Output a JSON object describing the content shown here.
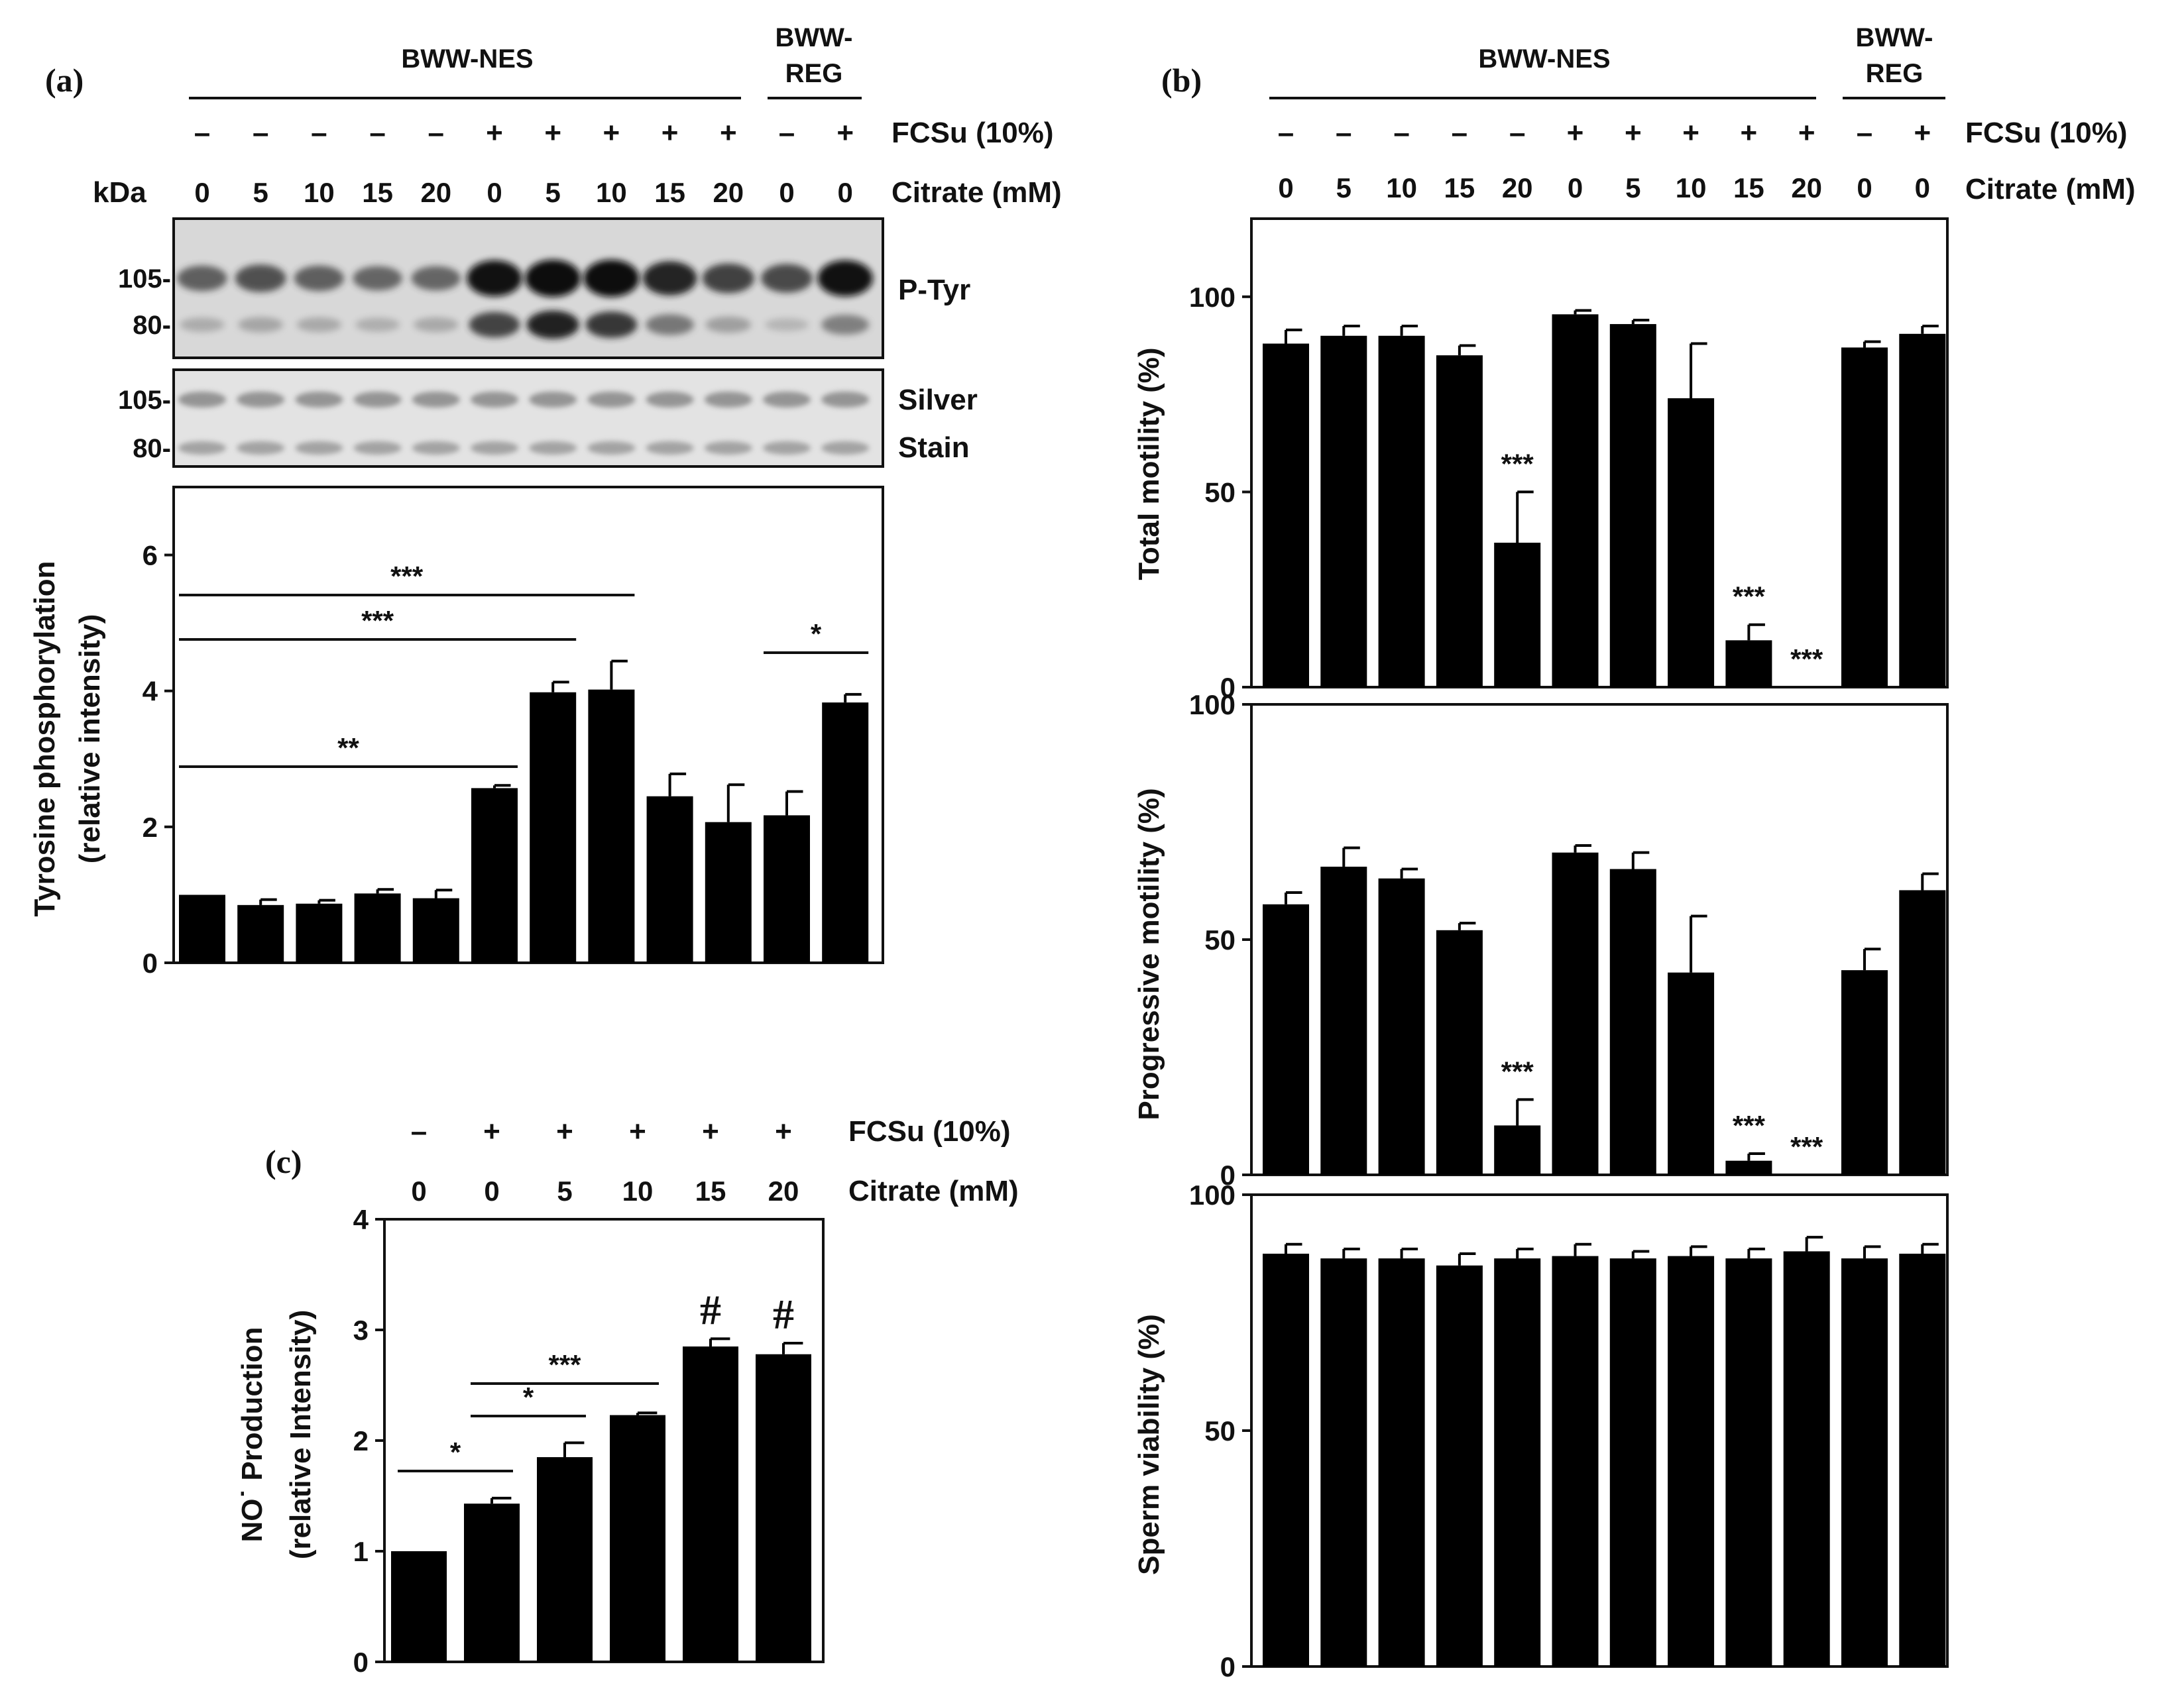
{
  "panel_labels": {
    "a": "(a)",
    "b": "(b)",
    "c": "(c)"
  },
  "header": {
    "group_nes": "BWW-NES",
    "group_reg_line1": "BWW-",
    "group_reg_line2": "REG",
    "fcsu_label": "FCSu (10%)",
    "citrate_label": "Citrate (mM)",
    "kda_label": "kDa",
    "fcsu_signs": [
      "–",
      "–",
      "–",
      "–",
      "–",
      "+",
      "+",
      "+",
      "+",
      "+",
      "–",
      "+"
    ],
    "citrate_values": [
      "0",
      "5",
      "10",
      "15",
      "20",
      "0",
      "5",
      "10",
      "15",
      "20",
      "0",
      "0"
    ]
  },
  "blot": {
    "ptyr_label": "P-Tyr",
    "silver_label_1": "Silver",
    "silver_label_2": "Stain",
    "marker_105": "105-",
    "marker_80": "80-",
    "band105_intensity": [
      0.45,
      0.55,
      0.45,
      0.4,
      0.4,
      0.95,
      1.0,
      1.0,
      0.85,
      0.65,
      0.6,
      0.95
    ],
    "band80_intensity": [
      0.2,
      0.25,
      0.22,
      0.18,
      0.22,
      0.8,
      0.95,
      0.85,
      0.55,
      0.3,
      0.12,
      0.5
    ]
  },
  "header_c": {
    "fcsu_signs": [
      "–",
      "+",
      "+",
      "+",
      "+",
      "+"
    ],
    "citrate_values": [
      "0",
      "0",
      "5",
      "10",
      "15",
      "20"
    ]
  },
  "chart_data": [
    {
      "id": "a",
      "type": "bar",
      "ylabel_line1": "Tyrosine phosphorylation",
      "ylabel_line2": "(relative intensity)",
      "ylim": [
        0,
        7
      ],
      "yticks": [
        "0",
        "2",
        "4",
        "6"
      ],
      "categories": [
        "0",
        "5",
        "10",
        "15",
        "20",
        "0",
        "5",
        "10",
        "15",
        "20",
        "0",
        "0"
      ],
      "values": [
        1.0,
        0.85,
        0.87,
        1.02,
        0.95,
        2.57,
        3.98,
        4.02,
        2.45,
        2.07,
        2.17,
        3.83
      ],
      "errors": [
        0.0,
        0.08,
        0.05,
        0.06,
        0.12,
        0.04,
        0.15,
        0.42,
        0.33,
        0.55,
        0.35,
        0.12
      ],
      "significance": [
        {
          "from": 0,
          "to": 7,
          "label": "***"
        },
        {
          "from": 0,
          "to": 6,
          "label": "***"
        },
        {
          "from": 0,
          "to": 5,
          "label": "**"
        },
        {
          "from": 10,
          "to": 11,
          "label": "*"
        }
      ]
    },
    {
      "id": "b1",
      "type": "bar",
      "ylabel": "Total motility (%)",
      "ylim": [
        0,
        120
      ],
      "yticks": [
        "0",
        "50",
        "100"
      ],
      "categories": [
        "0",
        "5",
        "10",
        "15",
        "20",
        "0",
        "5",
        "10",
        "15",
        "20",
        "0",
        "0"
      ],
      "values": [
        88,
        90,
        90,
        85,
        37,
        95.5,
        93,
        74,
        12,
        0,
        87,
        90.5
      ],
      "errors": [
        3.5,
        2.5,
        2.5,
        2.5,
        13,
        1,
        1,
        14,
        4,
        0,
        1.5,
        2
      ],
      "annotations": [
        {
          "index": 4,
          "label": "***"
        },
        {
          "index": 8,
          "label": "***"
        },
        {
          "index": 9,
          "label": "***"
        }
      ]
    },
    {
      "id": "b2",
      "type": "bar",
      "ylabel": "Progressive motility (%)",
      "ylim": [
        0,
        100
      ],
      "yticks": [
        "0",
        "50",
        "100"
      ],
      "categories": [
        "0",
        "5",
        "10",
        "15",
        "20",
        "0",
        "5",
        "10",
        "15",
        "20",
        "0",
        "0"
      ],
      "values": [
        57.5,
        65.5,
        63,
        52,
        10.5,
        68.5,
        65,
        43,
        3,
        0,
        43.5,
        60.5
      ],
      "errors": [
        2.5,
        4,
        2,
        1.5,
        5.5,
        1.5,
        3.5,
        12,
        1.5,
        0,
        4.5,
        3.5
      ],
      "annotations": [
        {
          "index": 4,
          "label": "***"
        },
        {
          "index": 8,
          "label": "***"
        },
        {
          "index": 9,
          "label": "***"
        }
      ]
    },
    {
      "id": "b3",
      "type": "bar",
      "ylabel": "Sperm viability (%)",
      "ylim": [
        0,
        100
      ],
      "yticks": [
        "0",
        "50",
        "100"
      ],
      "categories": [
        "0",
        "5",
        "10",
        "15",
        "20",
        "0",
        "5",
        "10",
        "15",
        "20",
        "0",
        "0"
      ],
      "values": [
        87.5,
        86.5,
        86.5,
        85,
        86.5,
        87,
        86.5,
        87,
        86.5,
        88,
        86.5,
        87.5
      ],
      "errors": [
        2,
        2,
        2,
        2.5,
        2,
        2.5,
        1.5,
        2,
        2,
        3,
        2.5,
        2
      ]
    },
    {
      "id": "c",
      "type": "bar",
      "ylabel_line1": "NO˙ Production",
      "ylabel_line2": "(relative Intensity)",
      "ylim": [
        0,
        4
      ],
      "yticks": [
        "0",
        "1",
        "2",
        "3",
        "4"
      ],
      "categories": [
        "0",
        "0",
        "5",
        "10",
        "15",
        "20"
      ],
      "values": [
        1.0,
        1.43,
        1.85,
        2.23,
        2.85,
        2.78
      ],
      "errors": [
        0.0,
        0.05,
        0.13,
        0.02,
        0.07,
        0.1
      ],
      "significance": [
        {
          "from": 0,
          "to": 1,
          "label": "*"
        },
        {
          "from": 1,
          "to": 2,
          "label": "*"
        },
        {
          "from": 1,
          "to": 3,
          "label": "***"
        }
      ],
      "annotations": [
        {
          "index": 4,
          "label": "#"
        },
        {
          "index": 5,
          "label": "#"
        }
      ]
    }
  ]
}
